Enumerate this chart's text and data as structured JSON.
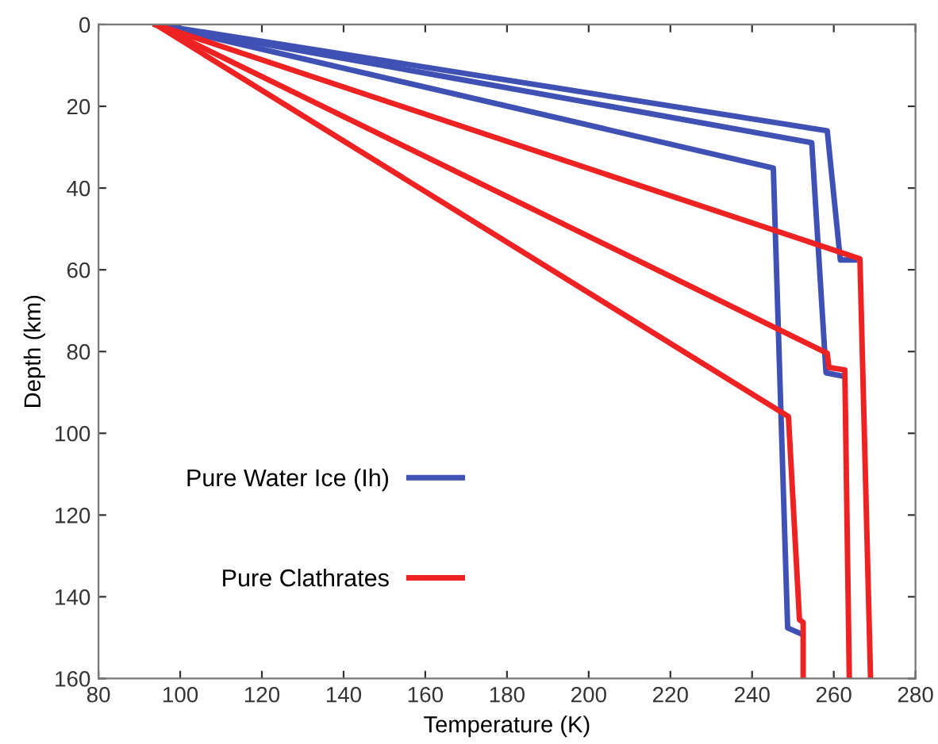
{
  "chart_data": {
    "type": "line",
    "xlabel": "Temperature (K)",
    "ylabel": "Depth (km)",
    "xlim": [
      80,
      280
    ],
    "xticks": [
      80,
      100,
      120,
      140,
      160,
      180,
      200,
      220,
      240,
      260,
      280
    ],
    "ylim": [
      160,
      0
    ],
    "yticks": [
      0,
      20,
      40,
      60,
      80,
      100,
      120,
      140,
      160
    ],
    "legend": "bottom left",
    "grid": false,
    "line_style": "solid",
    "marker": "none",
    "series": [
      {
        "name": "Pure Water Ice (Ih)",
        "color": "#3f51b5",
        "x": [
          94,
          258.4,
          261.6,
          265.1
        ],
        "values": [
          0,
          26,
          57.6,
          57.6
        ]
      },
      {
        "color": "#3f51b5",
        "x": [
          94,
          254.6,
          258.1,
          262.2
        ],
        "values": [
          0,
          28.9,
          85.2,
          86
        ]
      },
      {
        "color": "#3f51b5",
        "x": [
          94,
          245.2,
          248.7,
          251.6
        ],
        "values": [
          0,
          35.1,
          147.6,
          148.9
        ]
      },
      {
        "name": "Pure Clathrates",
        "color": "#ee2222",
        "x": [
          94,
          266.4,
          269
        ],
        "values": [
          0,
          57.3,
          160
        ]
      },
      {
        "color": "#ee2222",
        "x": [
          94,
          258.4,
          258.8,
          262.7,
          263.8
        ],
        "values": [
          0,
          80.4,
          83.9,
          84.5,
          160
        ]
      },
      {
        "color": "#ee2222",
        "x": [
          94,
          248.9,
          251.6,
          252.5,
          252.5
        ],
        "values": [
          0,
          95.9,
          145.6,
          146.3,
          160
        ]
      }
    ]
  }
}
